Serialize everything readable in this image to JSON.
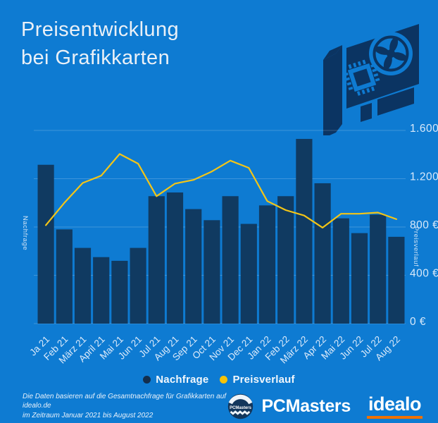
{
  "title": {
    "line1": "Preisentwicklung",
    "line2": "bei Grafikkarten"
  },
  "colors": {
    "background": "#0e7bd2",
    "bar": "#103a61",
    "navy_icon": "#0b3462",
    "line": "#f3c517",
    "grid": "rgba(255,255,255,0.20)",
    "axis_text": "#d8e9fa",
    "tick_text": "#ddebfb",
    "legend_nachfrage_dot": "#132e4c",
    "legend_preisverlauf_dot": "#f8c307",
    "idealo_underline": "#ee7100"
  },
  "icons": {
    "gpu": "graphics-card-icon",
    "pcmasters_badge": "pcmasters-badge-icon",
    "nachfrage_dot": "nachfrage-dot-icon",
    "preisverlauf_dot": "preisverlauf-dot-icon"
  },
  "chart_data": {
    "type": "bar+line",
    "title": "Preisentwicklung bei Grafikkarten",
    "categories": [
      "Ja 21",
      "Feb 21",
      "März 21",
      "April 21",
      "Mai 21",
      "Jun 21",
      "Jul 21",
      "Aug 21",
      "Sep 21",
      "Oct 21",
      "Nov 21",
      "Dec 21",
      "Jan 22",
      "Feb 22",
      "März 22",
      "Apr 22",
      "Mai 22",
      "Jun 22",
      "Jul 22",
      "Aug 22"
    ],
    "series": [
      {
        "name": "Nachfrage",
        "type": "bar",
        "axis": "left",
        "unit": "relative demand index (no numeric scale shown, max bar = 100)",
        "values": [
          86,
          51,
          41,
          36,
          34,
          41,
          69,
          71,
          62,
          56,
          69,
          54,
          64,
          69,
          100,
          76,
          57,
          49,
          59,
          47
        ]
      },
      {
        "name": "Preisverlauf",
        "type": "line",
        "axis": "right",
        "unit": "EUR",
        "values": [
          815,
          1000,
          1165,
          1225,
          1405,
          1325,
          1055,
          1160,
          1190,
          1260,
          1350,
          1290,
          1015,
          940,
          895,
          795,
          910,
          910,
          920,
          865
        ]
      }
    ],
    "left_axis_label": "Nachfrage",
    "right_axis_label": "Preisverlauf",
    "right_axis": {
      "ticks": [
        "1.600 €",
        "1.200 €",
        "800 €",
        "400 €",
        "0 €"
      ],
      "tick_values": [
        1600,
        1200,
        800,
        400,
        0
      ],
      "max": 1600
    },
    "grid": "horizontal",
    "x_tick_rotation_deg": -45,
    "legend_position": "bottom-center"
  },
  "legend": [
    {
      "label": "Nachfrage",
      "color": "#132e4c"
    },
    {
      "label": "Preisverlauf",
      "color": "#f8c307"
    }
  ],
  "footer": {
    "disclaimer_line1": "Die Daten basieren auf die Gesamtnachfrage für Grafikkarten auf idealo.de",
    "disclaimer_line2": "im Zeitraum Januar 2021 bis August 2022",
    "logos": {
      "pcmasters": "PCMasters",
      "idealo": "idealo"
    }
  }
}
